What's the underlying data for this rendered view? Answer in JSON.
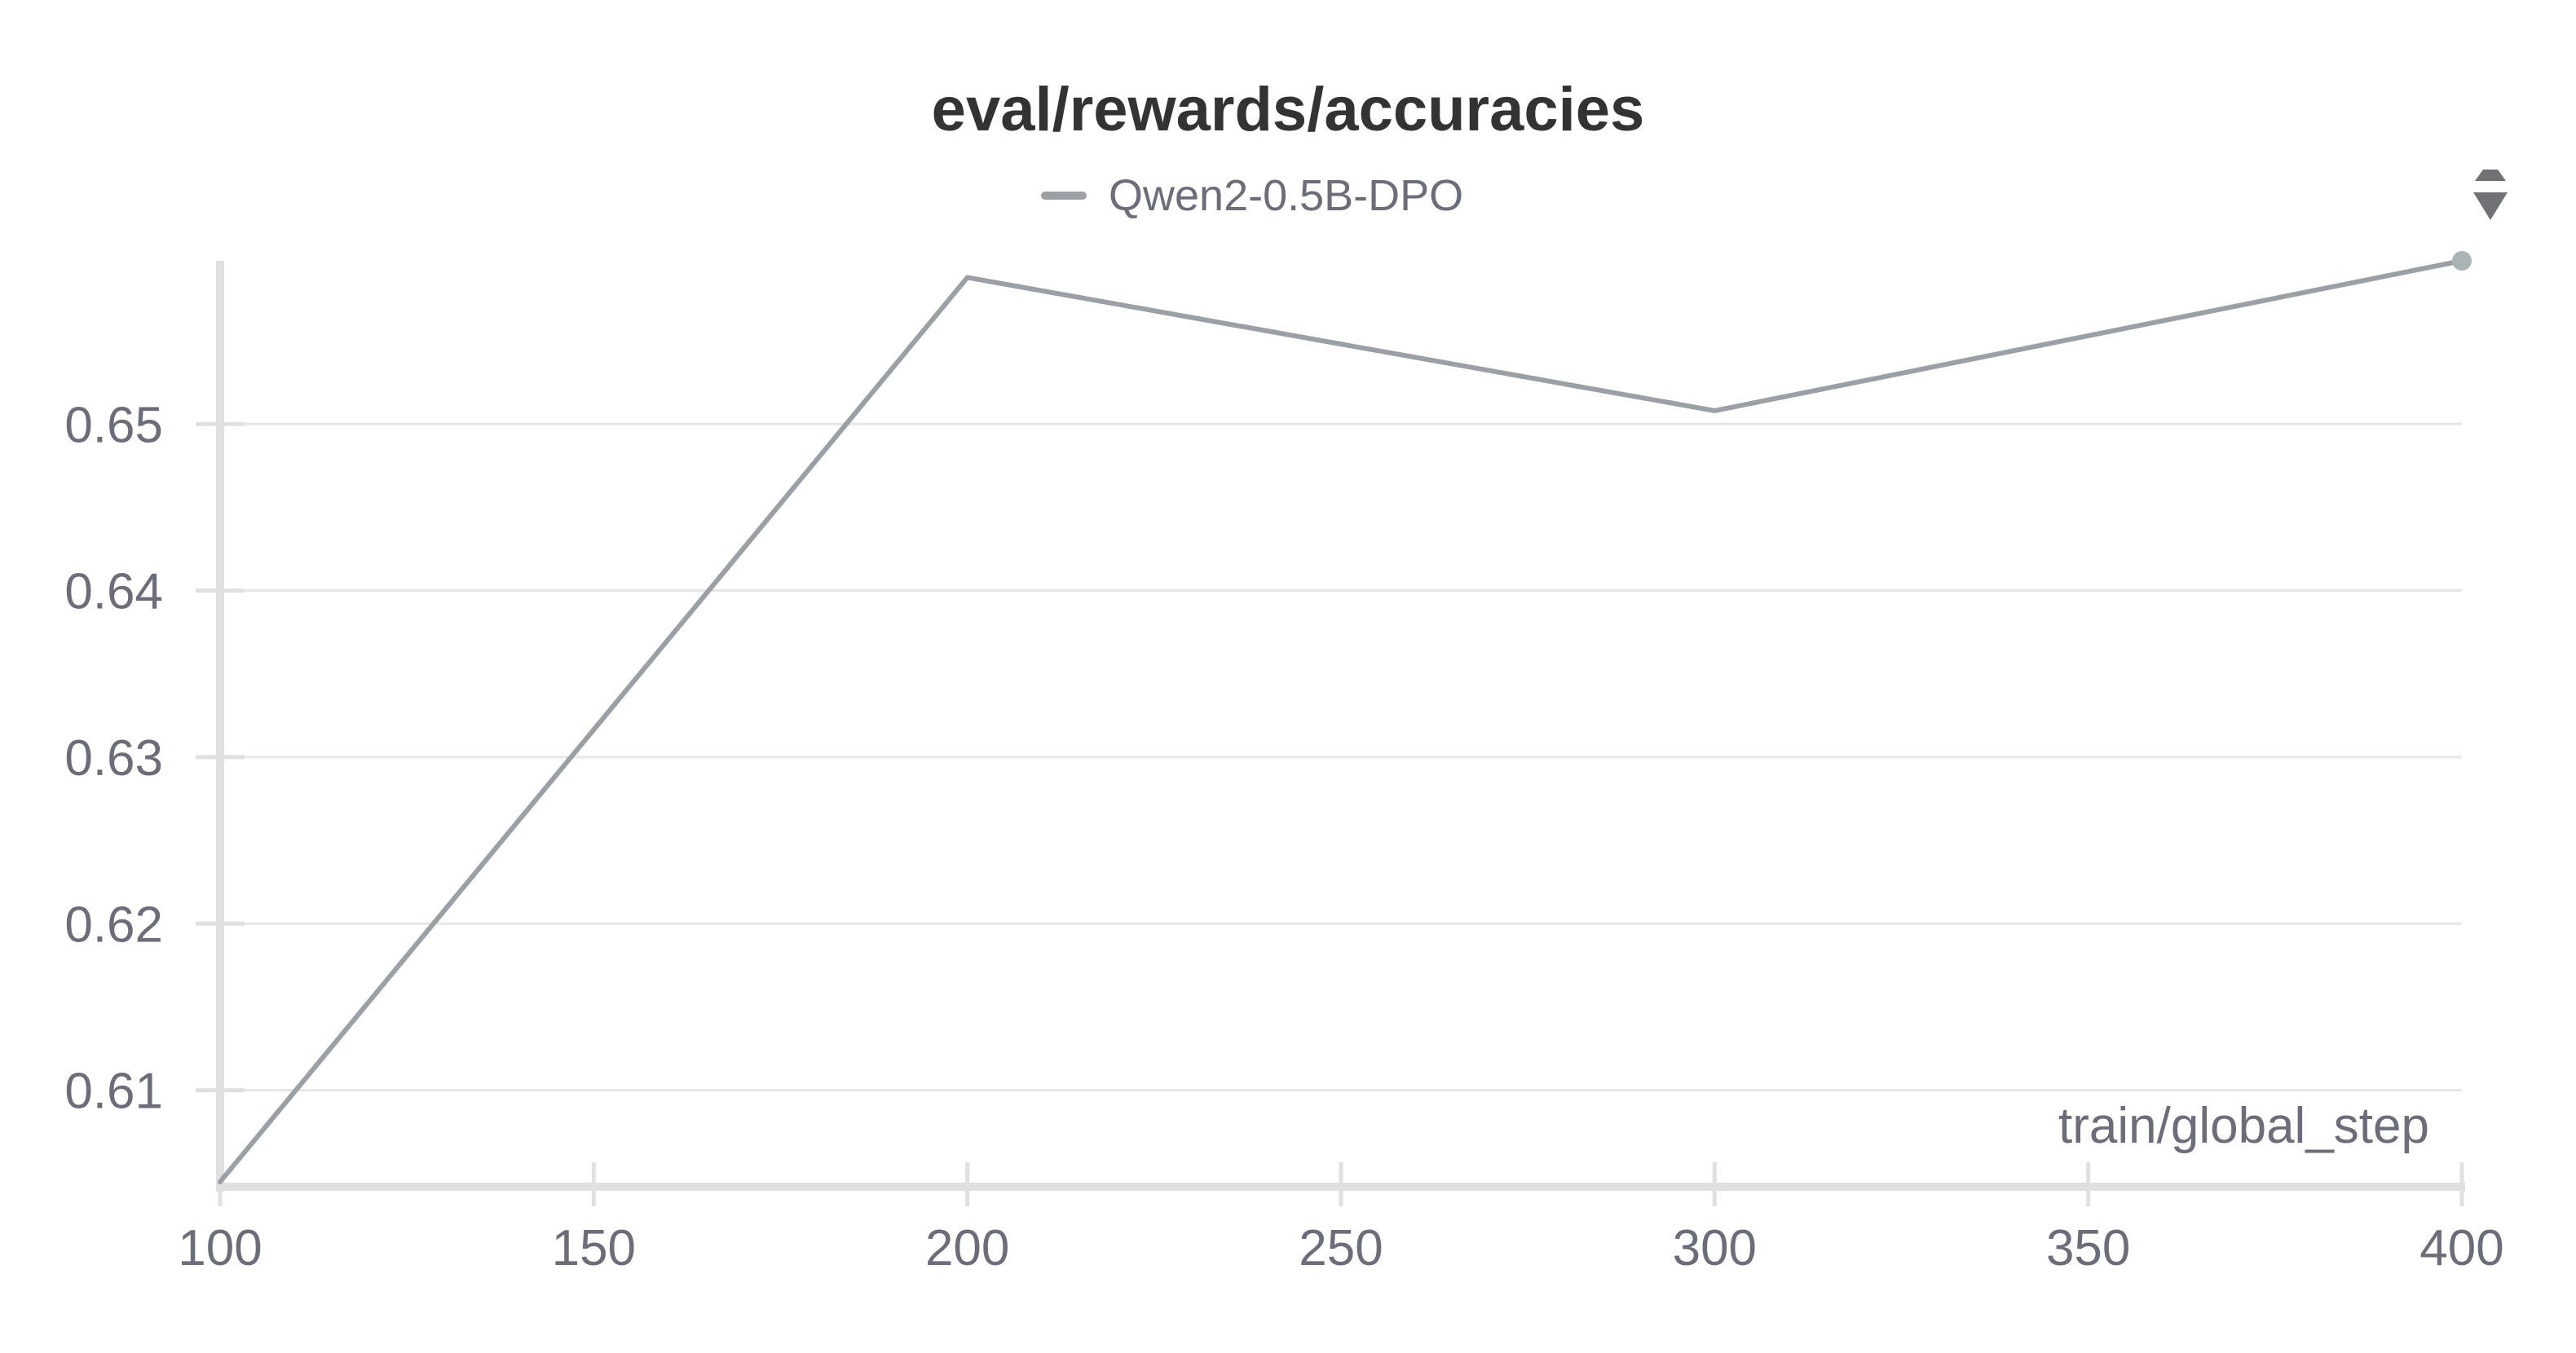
{
  "chart_data": {
    "type": "line",
    "title": "eval/rewards/accuracies",
    "xlabel": "train/global_step",
    "ylabel": "",
    "x": [
      100,
      200,
      300,
      400
    ],
    "series": [
      {
        "name": "Qwen2-0.5B-DPO",
        "color": "#9aa0a5",
        "values": [
          0.6045,
          0.6588,
          0.6508,
          0.6598
        ]
      }
    ],
    "xlim": [
      100,
      400
    ],
    "ylim": [
      0.6045,
      0.6598
    ],
    "xticks": [
      100,
      150,
      200,
      250,
      300,
      350,
      400
    ],
    "xtick_labels": [
      "100",
      "150",
      "200",
      "250",
      "300",
      "350",
      "400"
    ],
    "yticks": [
      0.61,
      0.62,
      0.63,
      0.64,
      0.65
    ],
    "ytick_labels": [
      "0.61",
      "0.62",
      "0.63",
      "0.64",
      "0.65"
    ],
    "grid": true,
    "legend_position": "top-center"
  },
  "colors": {
    "grid": "#e6e6e6",
    "axis": "#e0e0e0",
    "line": "#9aa0a5",
    "handle": "#707275"
  },
  "icons": {
    "scroll_handle": "drag-handle-icon"
  }
}
